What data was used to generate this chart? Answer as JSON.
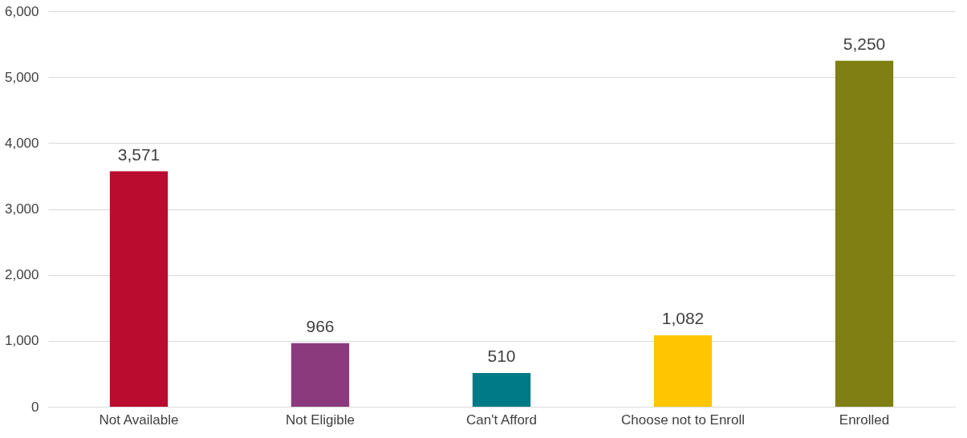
{
  "chart_data": {
    "type": "bar",
    "categories": [
      "Not Available",
      "Not Eligible",
      "Can't Afford",
      "Choose not to Enroll",
      "Enrolled"
    ],
    "values": [
      3571,
      966,
      510,
      1082,
      5250
    ],
    "value_labels": [
      "3,571",
      "966",
      "510",
      "1,082",
      "5,250"
    ],
    "colors": [
      "#ba0c2f",
      "#8b3a7e",
      "#007a87",
      "#ffc600",
      "#7f7f14"
    ],
    "ylim": [
      0,
      6000
    ],
    "yticks": [
      0,
      {
        "value": 1000,
        "label": "1,000"
      },
      {
        "value": 2000,
        "label": "2,000"
      },
      {
        "value": 3000,
        "label": "3,000"
      },
      {
        "value": 4000,
        "label": "4,000"
      },
      {
        "value": 5000,
        "label": "5,000"
      },
      {
        "value": 6000,
        "label": "6,000"
      }
    ],
    "grid": "y"
  }
}
